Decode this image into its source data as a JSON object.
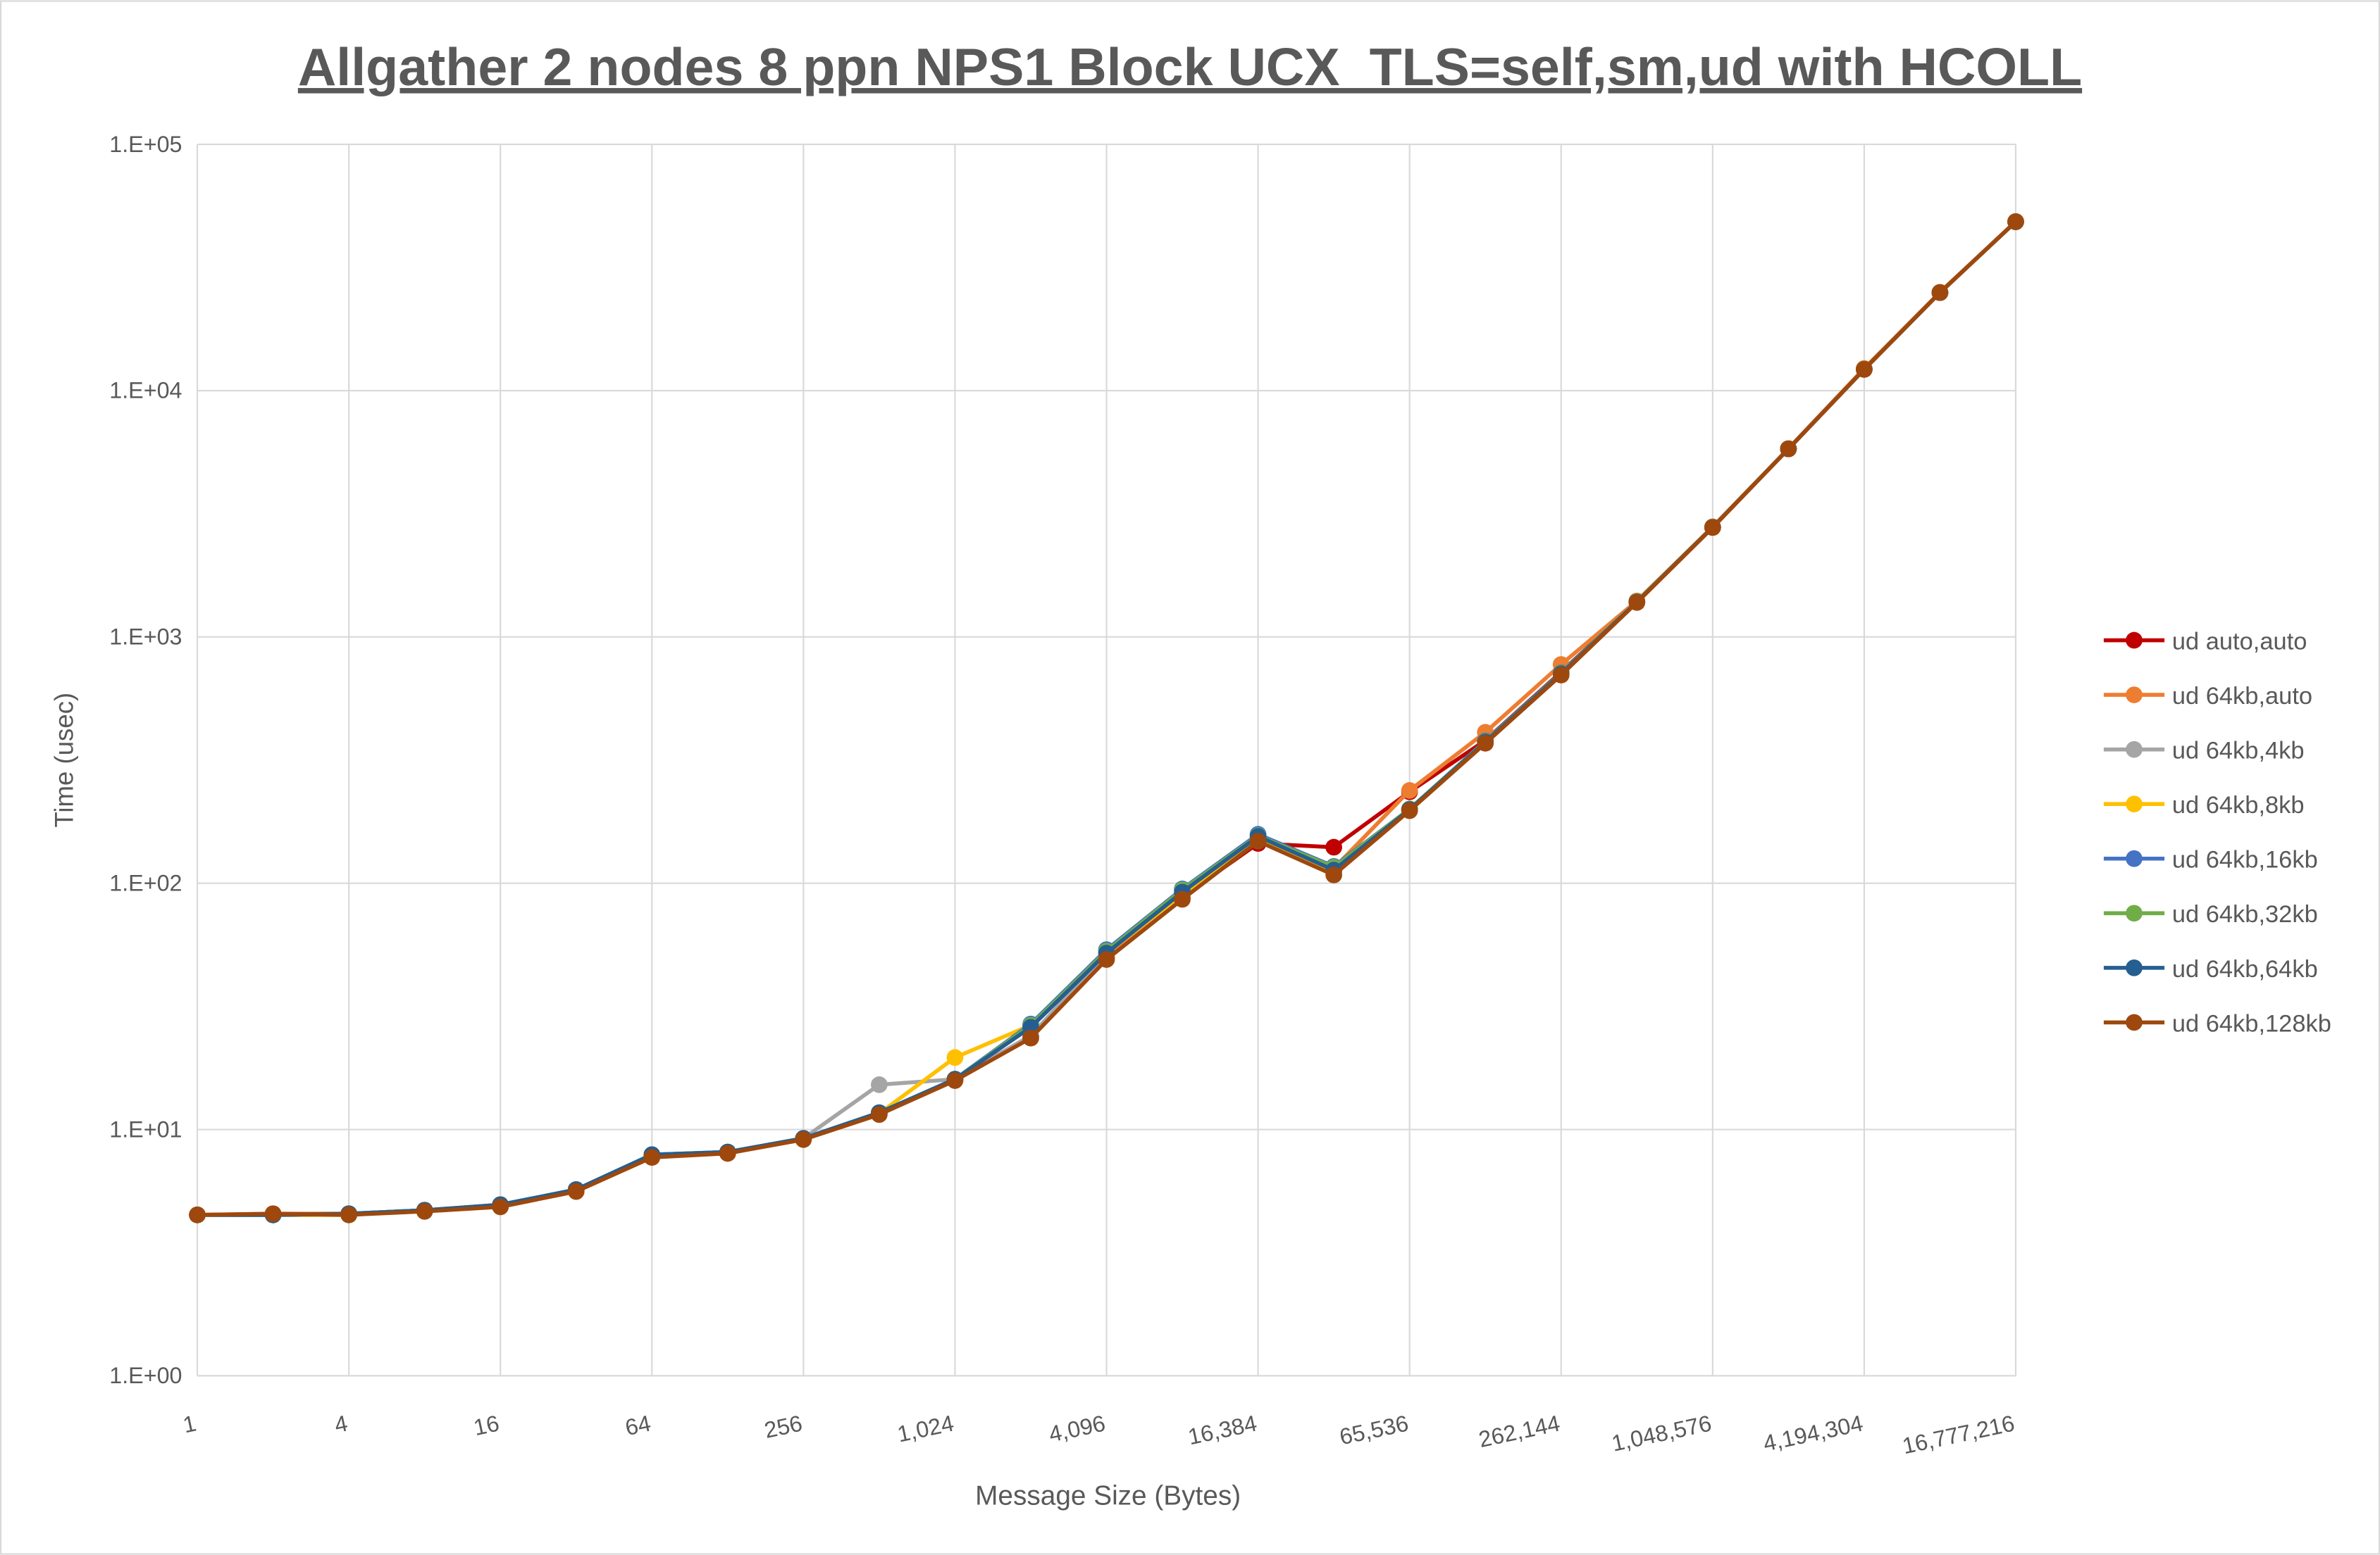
{
  "chart_data": {
    "type": "line",
    "title": "Allgather 2 nodes 8 ppn NPS1 Block UCX_TLS=self,sm,ud with HCOLL",
    "x_label": "Message Size (Bytes)",
    "y_label": "Time (usec)",
    "x": [
      1,
      2,
      4,
      8,
      16,
      32,
      64,
      128,
      256,
      512,
      1024,
      2048,
      4096,
      8192,
      16384,
      32768,
      65536,
      131072,
      262144,
      524288,
      1048576,
      2097152,
      4194304,
      8388608,
      16777216
    ],
    "xscale": "log",
    "yscale": "log",
    "grid": true,
    "legend": "right",
    "xlim": [
      1,
      16777216
    ],
    "ylim": [
      1,
      100000
    ],
    "xticks": [
      1,
      4,
      16,
      64,
      256,
      {
        "value": 1024,
        "label": "1,024"
      },
      {
        "value": 4096,
        "label": "4,096"
      },
      {
        "value": 16384,
        "label": "16,384"
      },
      {
        "value": 65536,
        "label": "65,536"
      },
      {
        "value": 262144,
        "label": "262,144"
      },
      {
        "value": 1048576,
        "label": "1,048,576"
      },
      {
        "value": 4194304,
        "label": "4,194,304"
      },
      {
        "value": 16777216,
        "label": "16,777,216"
      }
    ],
    "yticks": [
      {
        "value": 1,
        "label": "1.E+00"
      },
      {
        "value": 10,
        "label": "1.E+01"
      },
      {
        "value": 100,
        "label": "1.E+02"
      },
      {
        "value": 1000,
        "label": "1.E+03"
      },
      {
        "value": 10000,
        "label": "1.E+04"
      },
      {
        "value": 100000,
        "label": "1.E+05"
      }
    ],
    "series": [
      {
        "name": "ud auto,auto",
        "color": "#c00000",
        "values": [
          4.5,
          4.5,
          4.5,
          4.7,
          4.9,
          5.7,
          7.8,
          8.0,
          9.2,
          11.6,
          16,
          24,
          50,
          88,
          145,
          140,
          235,
          380,
          720,
          1390,
          2790,
          5810,
          12200,
          25000,
          48600
        ]
      },
      {
        "name": "ud 64kb,auto",
        "color": "#ed7d31",
        "values": [
          4.5,
          4.55,
          4.55,
          4.7,
          4.9,
          5.7,
          7.8,
          8.0,
          9.2,
          11.6,
          16,
          24,
          50,
          88,
          150,
          115,
          238,
          410,
          773,
          1400,
          2800,
          5820,
          12300,
          25100,
          48600
        ]
      },
      {
        "name": "ud 64kb,4kb",
        "color": "#a5a5a5",
        "values": [
          4.5,
          4.5,
          4.5,
          4.7,
          4.9,
          5.7,
          7.8,
          8.0,
          9.2,
          15.2,
          16,
          24,
          52,
          90,
          152,
          112,
          200,
          375,
          710,
          1390,
          2790,
          5800,
          12200,
          25000,
          48500
        ]
      },
      {
        "name": "ud 64kb,8kb",
        "color": "#ffc000",
        "values": [
          4.5,
          4.5,
          4.5,
          4.7,
          4.9,
          5.7,
          7.8,
          8.0,
          9.2,
          11.6,
          19.6,
          26.5,
          52,
          90,
          152,
          112,
          200,
          375,
          710,
          1390,
          2790,
          5800,
          12200,
          25000,
          48500
        ]
      },
      {
        "name": "ud 64kb,16kb",
        "color": "#4472c4",
        "values": [
          4.5,
          4.5,
          4.55,
          4.7,
          4.95,
          5.7,
          7.9,
          8.1,
          9.2,
          11.7,
          16,
          26.8,
          53.7,
          94.8,
          158,
          117,
          200,
          378,
          715,
          1390,
          2790,
          5800,
          12200,
          25000,
          48500
        ]
      },
      {
        "name": "ud 64kb,32kb",
        "color": "#70ad47",
        "values": [
          4.5,
          4.5,
          4.55,
          4.7,
          4.95,
          5.7,
          7.9,
          8.1,
          9.2,
          11.7,
          16,
          26.5,
          53,
          94,
          156,
          116,
          200,
          376,
          712,
          1390,
          2790,
          5800,
          12200,
          25000,
          48500
        ]
      },
      {
        "name": "ud 64kb,64kb",
        "color": "#255e91",
        "values": [
          4.5,
          4.5,
          4.55,
          4.7,
          4.95,
          5.7,
          7.9,
          8.1,
          9.2,
          11.7,
          16,
          26,
          52,
          92,
          155,
          113,
          199,
          374,
          708,
          1385,
          2785,
          5800,
          12200,
          25000,
          48500
        ]
      },
      {
        "name": "ud 64kb,128kb",
        "color": "#9e480e",
        "values": [
          4.5,
          4.55,
          4.5,
          4.65,
          4.85,
          5.6,
          7.7,
          8.0,
          9.1,
          11.5,
          15.8,
          23.5,
          49,
          86,
          148,
          108,
          197,
          370,
          700,
          1380,
          2780,
          5800,
          12200,
          25000,
          48500
        ]
      }
    ]
  }
}
